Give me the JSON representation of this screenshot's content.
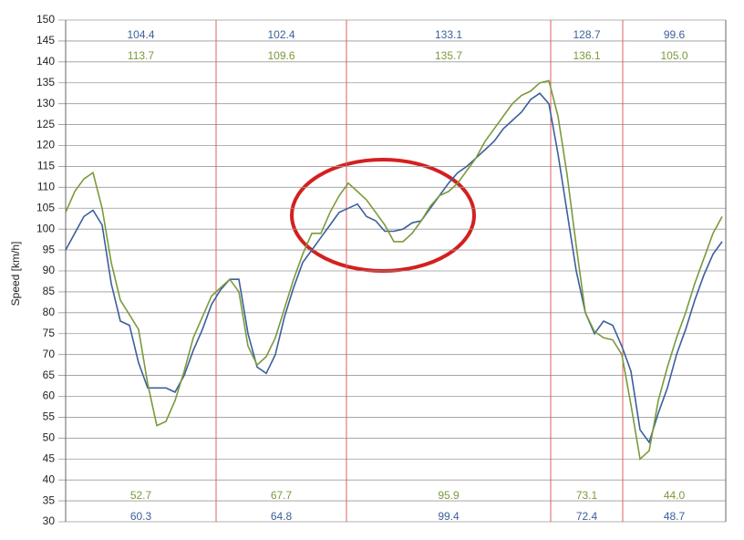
{
  "chart_data": {
    "type": "line",
    "y_label": "Speed [km/h]",
    "ylim": [
      30,
      150
    ],
    "yticks": [
      30,
      35,
      40,
      45,
      50,
      55,
      60,
      65,
      70,
      75,
      80,
      85,
      90,
      95,
      100,
      105,
      110,
      115,
      120,
      125,
      130,
      135,
      140,
      145,
      150
    ],
    "xlim": [
      0,
      72.4
    ],
    "grid": true,
    "section_bounds": [
      16.5,
      30.8,
      53.2,
      61.1
    ],
    "section_color": "#e06060",
    "x": [
      0,
      1,
      2,
      3,
      4,
      5,
      6,
      7,
      8,
      9,
      10,
      11,
      12,
      13,
      14,
      15,
      16,
      17,
      18,
      19,
      20,
      21,
      22,
      23,
      24,
      25,
      26,
      27,
      28,
      29,
      30,
      31,
      32,
      33,
      34,
      35,
      36,
      37,
      38,
      39,
      40,
      41,
      42,
      43,
      44,
      45,
      46,
      47,
      48,
      49,
      50,
      51,
      52,
      53,
      54,
      55,
      56,
      57,
      58,
      59,
      60,
      61,
      62,
      63,
      64,
      65,
      66,
      67,
      68,
      69,
      70,
      71,
      72
    ],
    "series": [
      {
        "color": "#3c5f9c",
        "values": [
          95,
          99,
          103,
          104.5,
          101,
          87,
          78,
          77,
          68,
          62,
          62,
          62,
          61,
          65,
          71,
          76,
          82,
          85.5,
          88,
          88,
          75,
          67,
          65.5,
          70,
          79,
          86,
          92,
          95,
          98,
          101,
          104,
          105,
          106,
          103,
          102,
          99.5,
          99.5,
          100,
          101.5,
          102,
          105,
          108,
          111,
          113.5,
          115,
          117,
          119,
          121,
          124,
          126,
          128,
          131,
          132.5,
          130,
          118,
          104,
          90,
          80,
          75,
          78,
          77,
          72,
          66,
          52,
          49,
          56,
          62,
          70,
          76,
          83,
          89,
          94,
          97
        ],
        "max_values": [
          104.4,
          102.4,
          133.1,
          128.7,
          99.6
        ],
        "min_values": [
          60.3,
          64.8,
          99.4,
          72.4,
          48.7
        ]
      },
      {
        "color": "#7b9a3c",
        "values": [
          104,
          109,
          112,
          113.5,
          105,
          92,
          83,
          79.5,
          76,
          63,
          53,
          54,
          59,
          66,
          74,
          79,
          84,
          86,
          88,
          85,
          72,
          67.5,
          69.5,
          74,
          81,
          88,
          94,
          99,
          99,
          104,
          108,
          111,
          109,
          107,
          104,
          101,
          97,
          97,
          99,
          102,
          105.5,
          108,
          109,
          111,
          114,
          117,
          121,
          124,
          127,
          130,
          132,
          133,
          135,
          135.5,
          127,
          113,
          96,
          80,
          75.5,
          74,
          73.5,
          70,
          58,
          45,
          47,
          59,
          67,
          74,
          80,
          87,
          93,
          99,
          103
        ],
        "max_values": [
          113.7,
          109.6,
          135.7,
          136.1,
          105.0
        ],
        "max_value_labels": [
          "113.7",
          "109.6",
          "135.7",
          "136.1",
          "105.0"
        ],
        "min_values": [
          52.7,
          67.7,
          95.9,
          73.1,
          44.0
        ],
        "min_value_labels": [
          "52.7",
          "67.7",
          "95.9",
          "73.1",
          "44.0"
        ]
      }
    ]
  }
}
